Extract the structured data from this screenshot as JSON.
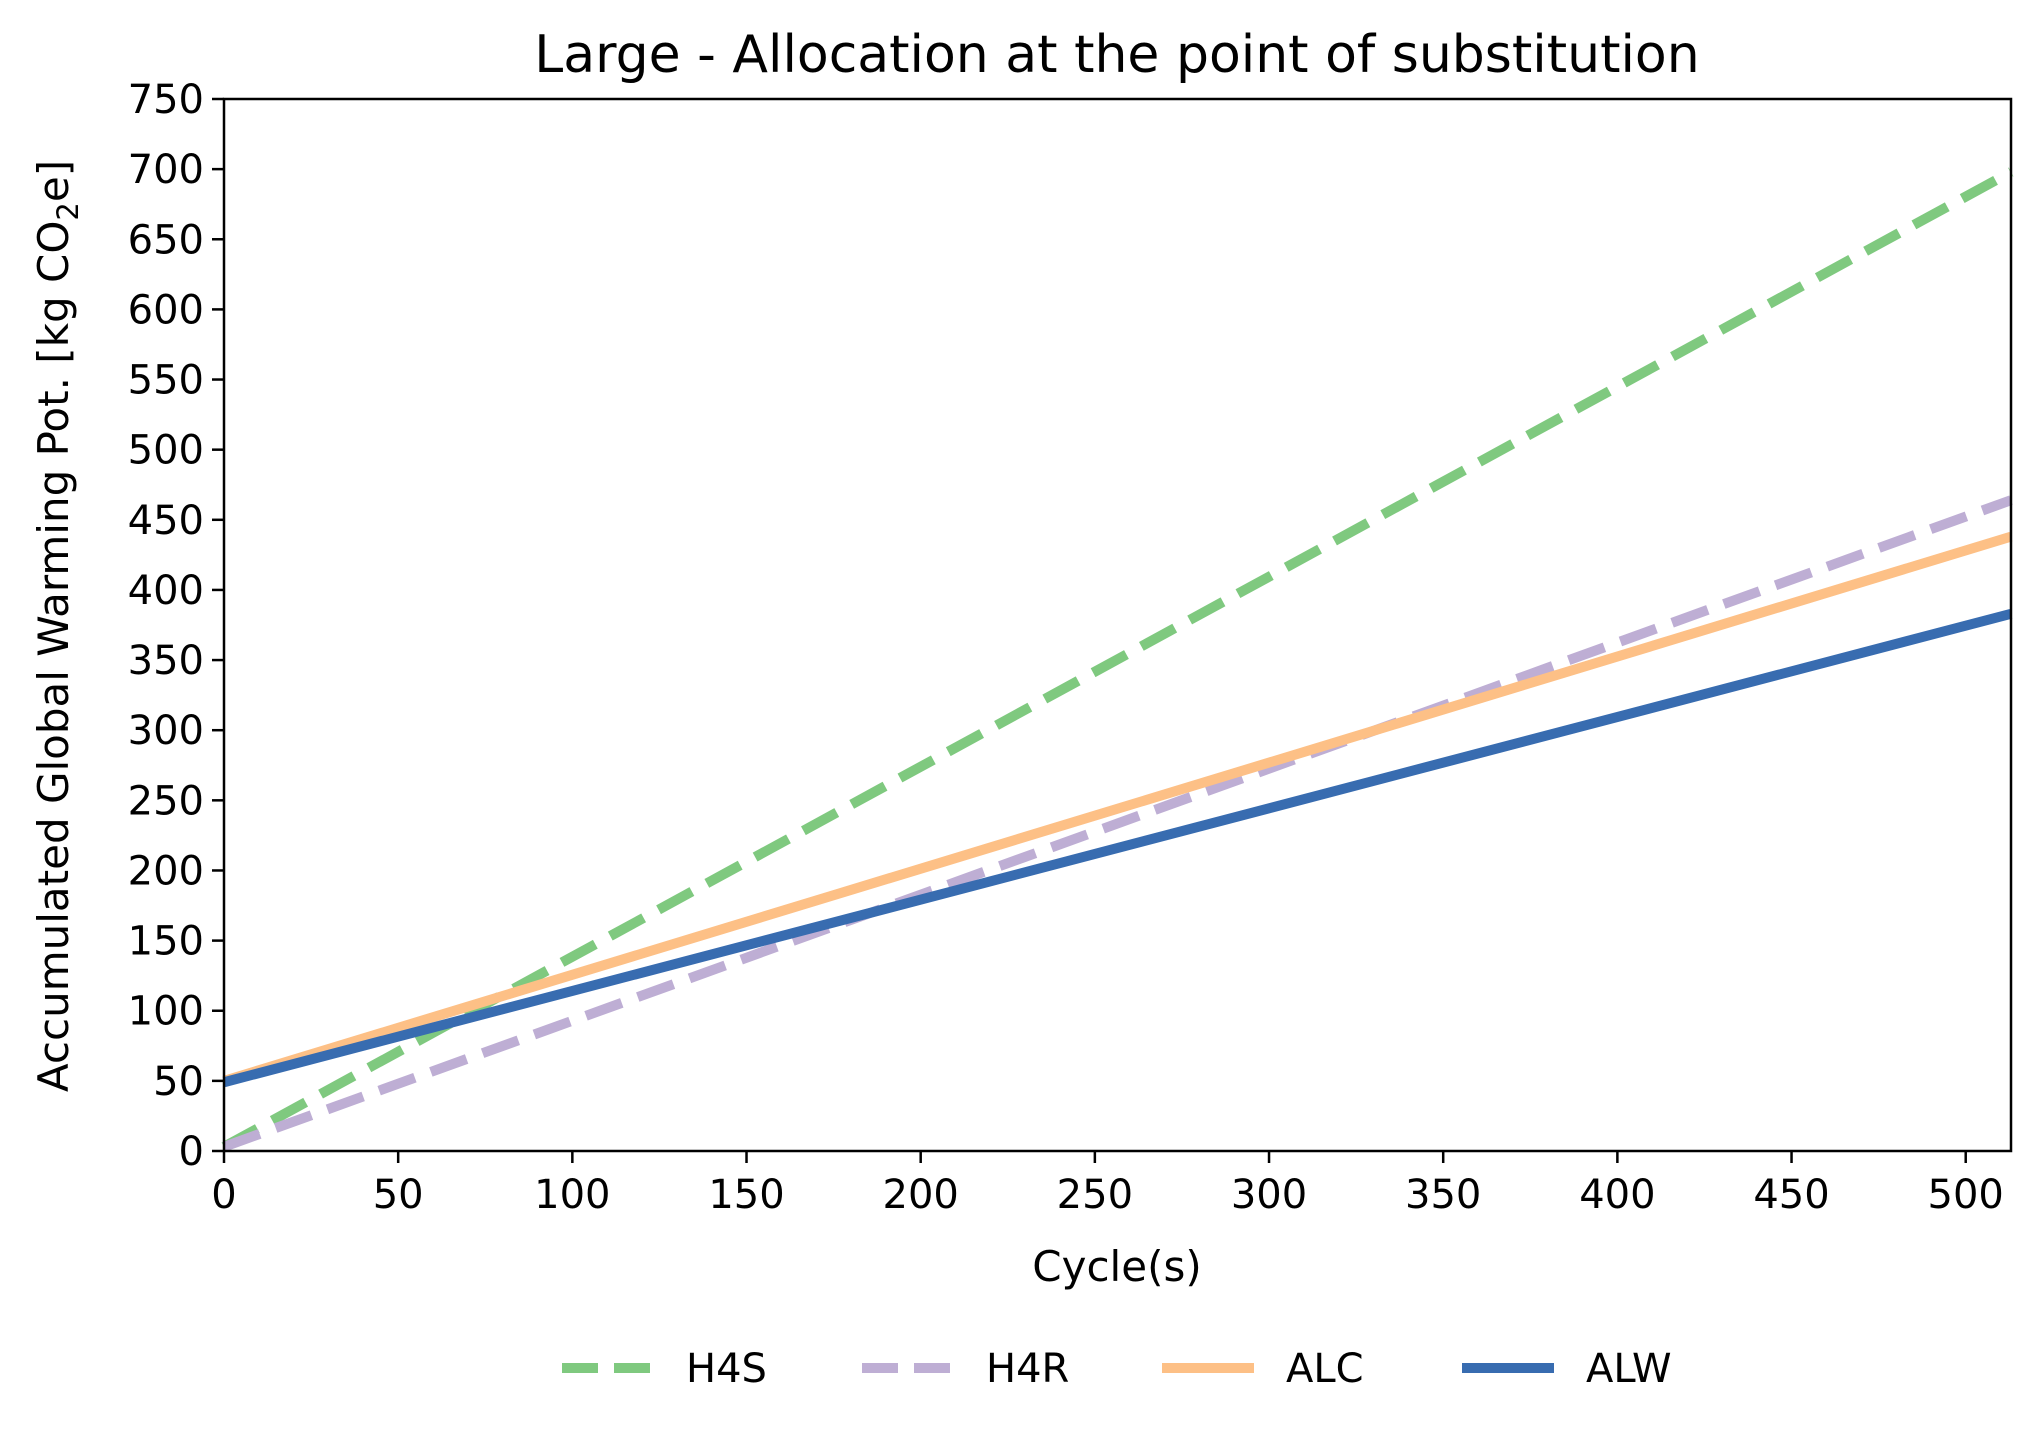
{
  "chart_data": {
    "type": "line",
    "title": "Large - Allocation at the point of substitution",
    "xlabel": "Cycle(s)",
    "ylabel": "Accumulated Global Warming Pot. [kg CO",
    "ylabel_sub": "2",
    "ylabel_tail": "e]",
    "xlim": [
      0,
      513
    ],
    "ylim": [
      0,
      750
    ],
    "x_ticks": [
      "0",
      "50",
      "100",
      "150",
      "200",
      "250",
      "300",
      "350",
      "400",
      "450",
      "500"
    ],
    "y_ticks": [
      "0",
      "50",
      "100",
      "150",
      "200",
      "250",
      "300",
      "350",
      "400",
      "450",
      "500",
      "550",
      "600",
      "650",
      "700",
      "750"
    ],
    "grid": false,
    "legend_position": "bottom-center",
    "series": [
      {
        "name": "H4S",
        "color": "#7fc97f",
        "dash": "dashed",
        "x": [
          0,
          513
        ],
        "y": [
          3,
          698
        ]
      },
      {
        "name": "H4R",
        "color": "#beaed4",
        "dash": "dashed",
        "x": [
          0,
          513
        ],
        "y": [
          3,
          464
        ]
      },
      {
        "name": "ALC",
        "color": "#fdc086",
        "dash": "solid",
        "x": [
          0,
          513
        ],
        "y": [
          50,
          438
        ]
      },
      {
        "name": "ALW",
        "color": "#386cb0",
        "dash": "solid",
        "x": [
          0,
          513
        ],
        "y": [
          49,
          383
        ]
      }
    ]
  }
}
